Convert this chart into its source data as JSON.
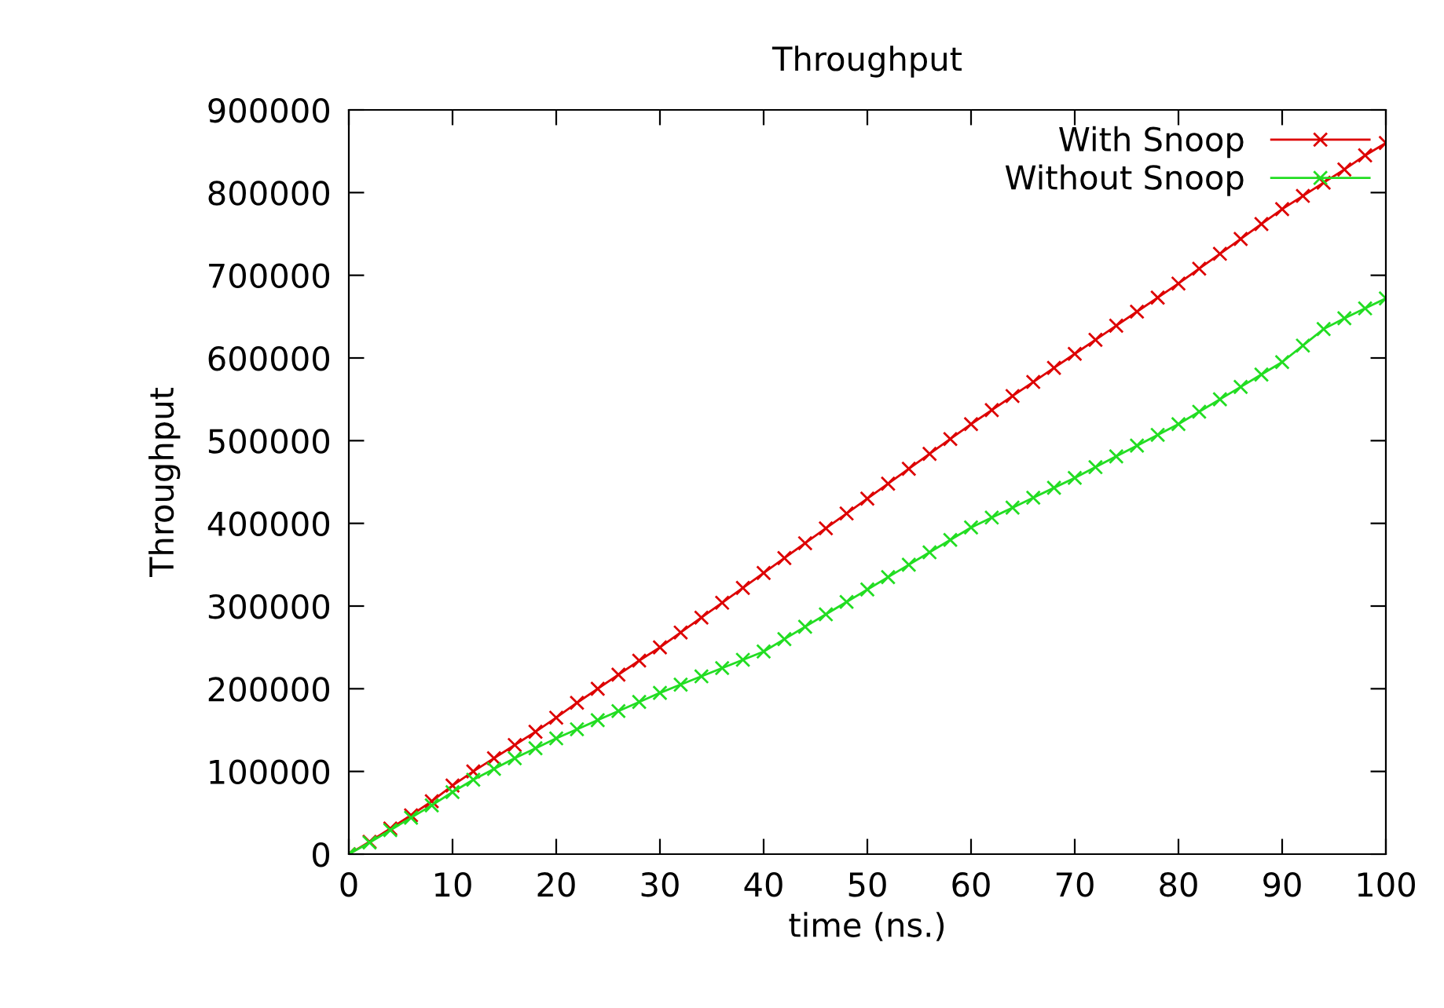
{
  "chart_data": {
    "type": "line",
    "title": "Throughput",
    "xlabel": "time (ns.)",
    "ylabel": "Throughput",
    "x": [
      0,
      2,
      4,
      6,
      8,
      10,
      12,
      14,
      16,
      18,
      20,
      22,
      24,
      26,
      28,
      30,
      32,
      34,
      36,
      38,
      40,
      42,
      44,
      46,
      48,
      50,
      52,
      54,
      56,
      58,
      60,
      62,
      64,
      66,
      68,
      70,
      72,
      74,
      76,
      78,
      80,
      82,
      84,
      86,
      88,
      90,
      92,
      94,
      96,
      98,
      100
    ],
    "series": [
      {
        "name": "With Snoop",
        "color": "#dd0000",
        "values": [
          0,
          15000,
          31000,
          47000,
          64000,
          83000,
          100000,
          116000,
          132000,
          148000,
          165000,
          183000,
          200000,
          217000,
          234000,
          250000,
          268000,
          286000,
          304000,
          322000,
          340000,
          358000,
          376000,
          394000,
          412000,
          430000,
          448000,
          466000,
          484000,
          502000,
          520000,
          537000,
          554000,
          571000,
          588000,
          605000,
          622000,
          639000,
          656000,
          673000,
          690000,
          708000,
          726000,
          744000,
          762000,
          780000,
          796000,
          812000,
          828000,
          845000,
          860000
        ]
      },
      {
        "name": "Without Snoop",
        "color": "#22dd22",
        "values": [
          0,
          14000,
          29000,
          44000,
          59000,
          75000,
          90000,
          103000,
          116000,
          128000,
          140000,
          151000,
          162000,
          173000,
          184000,
          195000,
          205000,
          215000,
          225000,
          235000,
          245000,
          260000,
          275000,
          290000,
          305000,
          320000,
          335000,
          350000,
          365000,
          380000,
          395000,
          407000,
          419000,
          431000,
          443000,
          455000,
          468000,
          481000,
          494000,
          507000,
          520000,
          535000,
          550000,
          565000,
          580000,
          595000,
          615000,
          635000,
          648000,
          660000,
          672000
        ]
      }
    ],
    "xlim": [
      0,
      100
    ],
    "xticks": [
      0,
      10,
      20,
      30,
      40,
      50,
      60,
      70,
      80,
      90,
      100
    ],
    "ylim": [
      0,
      900000
    ],
    "yticks": [
      0,
      100000,
      200000,
      300000,
      400000,
      500000,
      600000,
      700000,
      800000,
      900000
    ],
    "grid": false,
    "legend": "top right",
    "marker": "cross",
    "line_style": "solid"
  }
}
